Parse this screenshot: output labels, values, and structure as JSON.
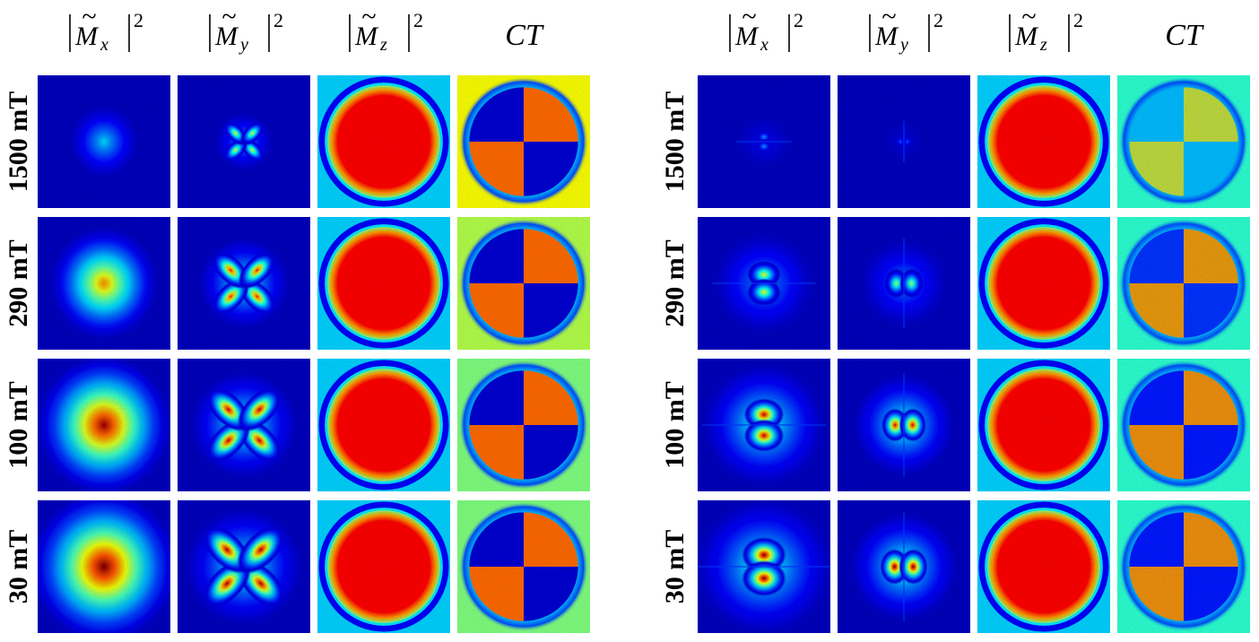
{
  "panels": [
    {
      "id": "left",
      "columns": [
        {
          "id": "mx",
          "kind": "magnitude",
          "symbol": "M",
          "subscript": "x",
          "power": "2"
        },
        {
          "id": "my",
          "kind": "magnitude",
          "symbol": "M",
          "subscript": "y",
          "power": "2"
        },
        {
          "id": "mz",
          "kind": "magnitude",
          "symbol": "M",
          "subscript": "z",
          "power": "2"
        },
        {
          "id": "ct",
          "kind": "ct",
          "label": "CT"
        }
      ],
      "rows": [
        {
          "label": "1500 mT",
          "mx": {
            "pattern": "blob",
            "peak": 0.34,
            "spread": 0.22
          },
          "my": {
            "pattern": "clover-diagonal",
            "peak": 0.6,
            "spread": 0.18
          },
          "mz": {
            "pattern": "disk-ring",
            "peak": 0.88
          },
          "ct": {
            "pattern": "quadrant",
            "contrast": 1.0,
            "bg": 0.62
          }
        },
        {
          "label": "290 mT",
          "mx": {
            "pattern": "blob",
            "peak": 0.74,
            "spread": 0.34
          },
          "my": {
            "pattern": "clover-diagonal",
            "peak": 0.86,
            "spread": 0.28
          },
          "mz": {
            "pattern": "disk-ring",
            "peak": 0.88
          },
          "ct": {
            "pattern": "quadrant",
            "contrast": 1.0,
            "bg": 0.55
          }
        },
        {
          "label": "100 mT",
          "mx": {
            "pattern": "blob",
            "peak": 0.97,
            "spread": 0.42
          },
          "my": {
            "pattern": "clover-diagonal",
            "peak": 0.94,
            "spread": 0.33
          },
          "mz": {
            "pattern": "disk-ring",
            "peak": 0.88
          },
          "ct": {
            "pattern": "quadrant",
            "contrast": 1.0,
            "bg": 0.5
          }
        },
        {
          "label": "30 mT",
          "mx": {
            "pattern": "blob",
            "peak": 1.0,
            "spread": 0.46
          },
          "my": {
            "pattern": "clover-diagonal",
            "peak": 0.96,
            "spread": 0.36
          },
          "mz": {
            "pattern": "disk-ring",
            "peak": 0.88
          },
          "ct": {
            "pattern": "quadrant",
            "contrast": 1.0,
            "bg": 0.5
          }
        }
      ]
    },
    {
      "id": "right",
      "columns": [
        {
          "id": "mx",
          "kind": "magnitude",
          "symbol": "M",
          "subscript": "x",
          "power": "2"
        },
        {
          "id": "my",
          "kind": "magnitude",
          "symbol": "M",
          "subscript": "y",
          "power": "2"
        },
        {
          "id": "mz",
          "kind": "magnitude",
          "symbol": "M",
          "subscript": "z",
          "power": "2"
        },
        {
          "id": "ct",
          "kind": "ct",
          "label": "CT"
        }
      ],
      "rows": [
        {
          "label": "1500 mT",
          "mx": {
            "pattern": "vertical-lobes",
            "peak": 0.28,
            "spread": 0.16
          },
          "my": {
            "pattern": "horizontal-lobes",
            "peak": 0.22,
            "spread": 0.12
          },
          "mz": {
            "pattern": "disk-ring",
            "peak": 0.88
          },
          "ct": {
            "pattern": "quadrant",
            "contrast": 0.45,
            "bg": 0.42
          }
        },
        {
          "label": "290 mT",
          "mx": {
            "pattern": "vertical-lobes",
            "peak": 0.62,
            "spread": 0.3
          },
          "my": {
            "pattern": "horizontal-lobes",
            "peak": 0.55,
            "spread": 0.26
          },
          "mz": {
            "pattern": "disk-ring",
            "peak": 0.88
          },
          "ct": {
            "pattern": "quadrant",
            "contrast": 0.8,
            "bg": 0.42
          }
        },
        {
          "label": "100 mT",
          "mx": {
            "pattern": "vertical-lobes",
            "peak": 0.95,
            "spread": 0.36
          },
          "my": {
            "pattern": "horizontal-lobes",
            "peak": 0.92,
            "spread": 0.3
          },
          "mz": {
            "pattern": "disk-ring",
            "peak": 0.88
          },
          "ct": {
            "pattern": "quadrant",
            "contrast": 0.85,
            "bg": 0.42
          }
        },
        {
          "label": "30 mT",
          "mx": {
            "pattern": "vertical-lobes",
            "peak": 1.0,
            "spread": 0.4
          },
          "my": {
            "pattern": "horizontal-lobes",
            "peak": 1.0,
            "spread": 0.32
          },
          "mz": {
            "pattern": "disk-ring",
            "peak": 0.88
          },
          "ct": {
            "pattern": "quadrant",
            "contrast": 0.85,
            "bg": 0.42
          }
        }
      ]
    }
  ],
  "colormap": "jet",
  "colors": {
    "low": "#00008f",
    "high": "#800000",
    "background": "#ffffff"
  }
}
